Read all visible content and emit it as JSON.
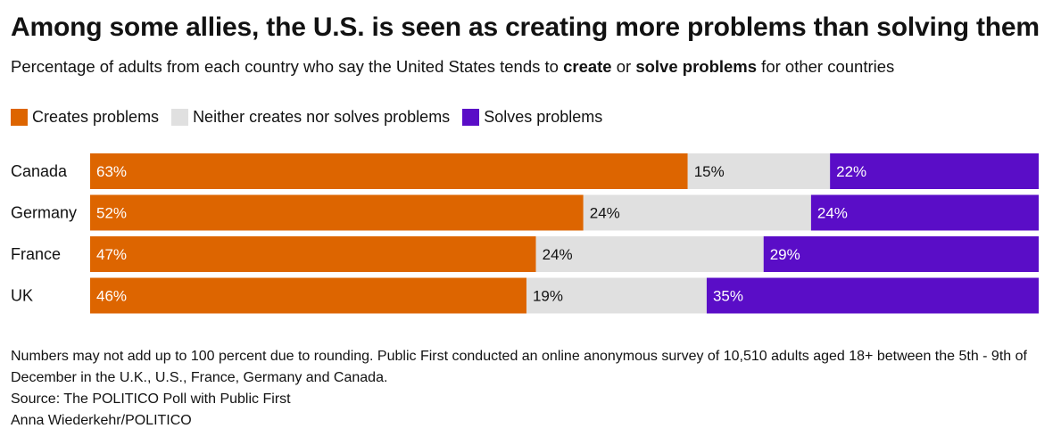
{
  "title": "Among some allies, the U.S. is seen as creating more problems than solving them",
  "subtitle": {
    "pre": "Percentage of adults from each country who say the United States tends to ",
    "bold1": "create",
    "mid": " or ",
    "bold2": "solve problems",
    "post": " for other countries"
  },
  "legend": [
    {
      "label": "Creates problems",
      "color": "#dd6500"
    },
    {
      "label": "Neither creates nor solves problems",
      "color": "#e0e0e0"
    },
    {
      "label": "Solves problems",
      "color": "#5a0dc7"
    }
  ],
  "chart_data": {
    "type": "bar",
    "orientation": "horizontal",
    "stacked": true,
    "categories": [
      "Canada",
      "Germany",
      "France",
      "UK"
    ],
    "series": [
      {
        "name": "Creates problems",
        "values": [
          63,
          52,
          47,
          46
        ],
        "color": "#dd6500",
        "label_color": "#ffffff"
      },
      {
        "name": "Neither creates nor solves problems",
        "values": [
          15,
          24,
          24,
          19
        ],
        "color": "#e0e0e0",
        "label_color": "#121212"
      },
      {
        "name": "Solves problems",
        "values": [
          22,
          24,
          29,
          35
        ],
        "color": "#5a0dc7",
        "label_color": "#ffffff"
      }
    ],
    "value_suffix": "%",
    "xlim": [
      0,
      100
    ]
  },
  "notes": {
    "methodology": "Numbers may not add up to 100 percent due to rounding. Public First conducted an online anonymous survey of 10,510 adults aged 18+ between the 5th - 9th of December in the U.K., U.S., France, Germany and Canada.",
    "source": "Source: The POLITICO Poll with Public First",
    "credit": "Anna Wiederkehr/POLITICO"
  }
}
